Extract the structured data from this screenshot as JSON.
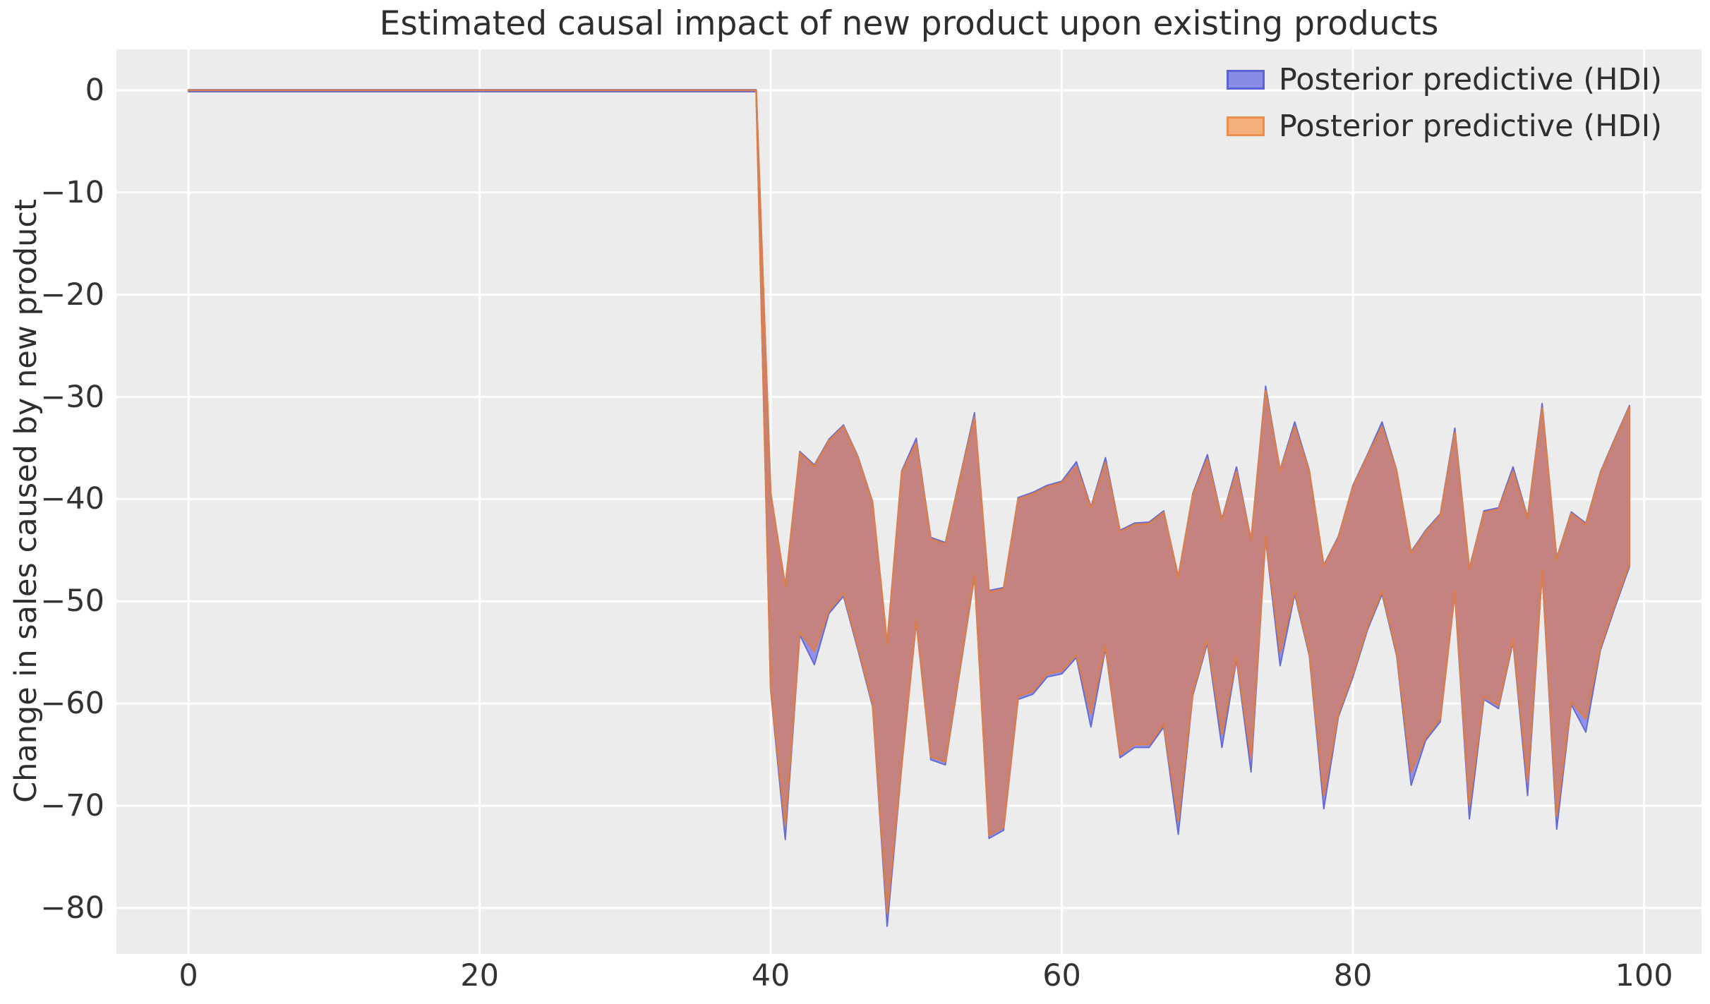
{
  "title": "Estimated causal impact of new product upon existing products",
  "colors": {
    "figure_bg": "#ffffff",
    "axes_bg": "#ececec",
    "grid": "#ffffff",
    "text": "#2e2e2e",
    "band_blend_fill": "#c48280",
    "band_orange_edge": "#d97e4e",
    "band_blue_fill": "#8a8de8",
    "band_blue_edge": "#666bd3"
  },
  "legend": [
    {
      "label": "Posterior predictive (HDI)",
      "fill": "#898ce7",
      "edge": "#5d62d2"
    },
    {
      "label": "Posterior predictive (HDI)",
      "fill": "#f3b07b",
      "edge": "#eb8f4a"
    }
  ],
  "chart_data": {
    "type": "area",
    "title": "Estimated causal impact of new product upon existing products",
    "xlabel": "",
    "ylabel": "Change in sales caused by new product",
    "axes": {
      "xlim": [
        -4.95,
        103.95
      ],
      "ylim": [
        -84.5,
        4.0
      ],
      "x_ticks": [
        0,
        20,
        40,
        60,
        80,
        100
      ],
      "y_ticks": [
        0,
        -10,
        -20,
        -30,
        -40,
        -50,
        -60,
        -70,
        -80
      ],
      "grid": true,
      "legend_position": "upper right"
    },
    "series_meta": [
      {
        "name": "Posterior predictive (HDI)",
        "role": "blue-hdi-band",
        "fill": "#8a8de8",
        "edge": "#666bd3"
      },
      {
        "name": "Posterior predictive (HDI)",
        "role": "orange-hdi-band",
        "fill": "#f3b07b",
        "edge": "#d97e4e"
      }
    ],
    "band": {
      "note": "Two nearly identical HDI bands overlap exactly; blended region renders #c48280 with orange edge and occasional blue fringes at sharp tips",
      "pre_period": {
        "x_start": 0,
        "x_end": 39,
        "upper": 0,
        "lower": 0
      },
      "post_period": {
        "x_start": 40,
        "upper": [
          -39.5,
          -48.6,
          -35.5,
          -36.8,
          -34.3,
          -32.9,
          -36.0,
          -40.4,
          -54.2,
          -37.4,
          -34.5,
          -43.9,
          -44.4,
          -38.0,
          -32.0,
          -49.1,
          -48.8,
          -40.0,
          -39.5,
          -38.8,
          -38.4,
          -36.8,
          -40.9,
          -36.4,
          -43.2,
          -42.5,
          -42.4,
          -41.3,
          -47.7,
          -39.6,
          -36.1,
          -42.1,
          -37.3,
          -44.1,
          -29.4,
          -37.3,
          -32.9,
          -37.3,
          -46.6,
          -43.8,
          -38.8,
          -35.8,
          -32.9,
          -37.3,
          -45.3,
          -43.2,
          -41.6,
          -33.5,
          -46.9,
          -41.3,
          -41.0,
          -37.3,
          -41.9,
          -31.1,
          -45.9,
          -41.4,
          -42.5,
          -37.5,
          -34.2,
          -31.0
        ],
        "lower": [
          -58.5,
          -72.0,
          -53.0,
          -54.9,
          -50.9,
          -49.2,
          -54.5,
          -60.0,
          -80.5,
          -65.9,
          -51.8,
          -65.2,
          -65.7,
          -56.5,
          -47.3,
          -72.9,
          -72.1,
          -59.3,
          -58.8,
          -57.1,
          -56.8,
          -55.2,
          -61.0,
          -54.3,
          -65.0,
          -64.0,
          -64.0,
          -62.0,
          -71.5,
          -58.9,
          -53.8,
          -63.0,
          -55.4,
          -65.4,
          -43.6,
          -55.0,
          -49.0,
          -55.0,
          -69.0,
          -61.0,
          -57.1,
          -52.5,
          -49.0,
          -55.0,
          -66.7,
          -63.3,
          -61.5,
          -49.0,
          -70.0,
          -59.3,
          -60.2,
          -53.7,
          -67.7,
          -46.9,
          -71.0,
          -59.8,
          -61.5,
          -54.5,
          -50.3,
          -46.3
        ]
      }
    }
  }
}
